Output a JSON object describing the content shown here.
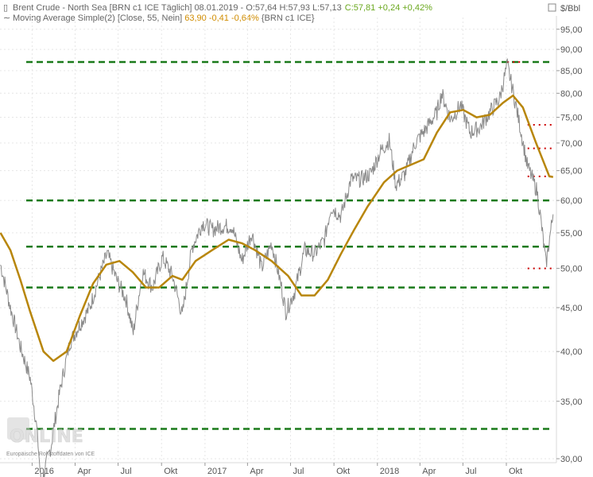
{
  "header": {
    "line1_prefix": "Brent Crude - North Sea [BRN c1 ICE  Täglich] 08.01.2019 - ",
    "line1_ohl": "O:57,64 H:57,93 L:57,13",
    "line1_close": "C:57,81 +0,24 +0,42%",
    "line2_prefix": "Moving Average Simple(2) [Close, 55, Nein] ",
    "line2_value": "63,90 -0,41 -0,64%",
    "line2_suffix": " {BRN c1 ICE}",
    "close_color": "#6aa81e",
    "neg_color": "#cc0033",
    "value_color": "#d08c00"
  },
  "axis": {
    "unit": "$/Bbl",
    "source_note": "Europäische Rohstoffdaten von ICE"
  },
  "logo": {
    "text": "ONLINE"
  },
  "chart_data": {
    "type": "line",
    "title": "Brent Crude - North Sea [BRN c1 ICE  Täglich]",
    "ylabel": "$/Bbl",
    "yscale": "log",
    "ylim": [
      30,
      97
    ],
    "y_ticks": [
      "30,00",
      "35,00",
      "40,00",
      "45,00",
      "50,00",
      "55,00",
      "60,00",
      "65,00",
      "70,00",
      "75,00",
      "80,00",
      "85,00",
      "90,00",
      "95,00"
    ],
    "y_tick_values": [
      30,
      35,
      40,
      45,
      50,
      55,
      60,
      65,
      70,
      75,
      80,
      85,
      90,
      95
    ],
    "x_ticks": [
      {
        "label": "2016",
        "date": "2016-01-01"
      },
      {
        "label": "Apr",
        "date": "2016-04-01"
      },
      {
        "label": "Jul",
        "date": "2016-07-01"
      },
      {
        "label": "Okt",
        "date": "2016-10-01"
      },
      {
        "label": "2017",
        "date": "2017-01-01"
      },
      {
        "label": "Apr",
        "date": "2017-04-01"
      },
      {
        "label": "Jul",
        "date": "2017-07-01"
      },
      {
        "label": "Okt",
        "date": "2017-10-01"
      },
      {
        "label": "2018",
        "date": "2018-01-01"
      },
      {
        "label": "Apr",
        "date": "2018-04-01"
      },
      {
        "label": "Jul",
        "date": "2018-07-01"
      },
      {
        "label": "Okt",
        "date": "2018-10-01"
      }
    ],
    "x_range": [
      "2015-10-25",
      "2019-01-15"
    ],
    "grid": true,
    "series": [
      {
        "name": "Brent Crude - North Sea",
        "color": "#8a8a8a",
        "points": [
          [
            "2015-10-26",
            50.5
          ],
          [
            "2015-11-16",
            45.0
          ],
          [
            "2015-12-07",
            40.5
          ],
          [
            "2015-12-28",
            37.2
          ],
          [
            "2016-01-11",
            32.5
          ],
          [
            "2016-01-20",
            28.0
          ],
          [
            "2016-02-10",
            31.0
          ],
          [
            "2016-02-29",
            36.0
          ],
          [
            "2016-03-21",
            41.0
          ],
          [
            "2016-04-11",
            43.0
          ],
          [
            "2016-05-02",
            45.0
          ],
          [
            "2016-05-23",
            49.0
          ],
          [
            "2016-06-08",
            52.0
          ],
          [
            "2016-06-28",
            48.5
          ],
          [
            "2016-07-18",
            46.0
          ],
          [
            "2016-08-02",
            42.0
          ],
          [
            "2016-08-22",
            49.5
          ],
          [
            "2016-09-12",
            47.5
          ],
          [
            "2016-10-03",
            51.5
          ],
          [
            "2016-10-24",
            49.0
          ],
          [
            "2016-11-14",
            44.0
          ],
          [
            "2016-12-05",
            53.0
          ],
          [
            "2016-12-27",
            56.5
          ],
          [
            "2017-01-16",
            55.5
          ],
          [
            "2017-02-06",
            56.0
          ],
          [
            "2017-02-27",
            56.0
          ],
          [
            "2017-03-20",
            51.0
          ],
          [
            "2017-04-10",
            55.0
          ],
          [
            "2017-05-01",
            50.0
          ],
          [
            "2017-05-22",
            53.5
          ],
          [
            "2017-06-12",
            47.5
          ],
          [
            "2017-06-21",
            44.5
          ],
          [
            "2017-07-10",
            47.0
          ],
          [
            "2017-07-31",
            52.5
          ],
          [
            "2017-08-21",
            52.0
          ],
          [
            "2017-09-11",
            54.0
          ],
          [
            "2017-09-25",
            59.0
          ],
          [
            "2017-10-16",
            57.5
          ],
          [
            "2017-11-06",
            63.5
          ],
          [
            "2017-11-27",
            63.5
          ],
          [
            "2017-12-18",
            64.5
          ],
          [
            "2018-01-08",
            68.5
          ],
          [
            "2018-01-26",
            70.5
          ],
          [
            "2018-02-09",
            62.5
          ],
          [
            "2018-03-01",
            64.5
          ],
          [
            "2018-03-22",
            70.0
          ],
          [
            "2018-04-12",
            72.5
          ],
          [
            "2018-05-07",
            76.0
          ],
          [
            "2018-05-17",
            80.0
          ],
          [
            "2018-06-05",
            74.5
          ],
          [
            "2018-06-26",
            77.5
          ],
          [
            "2018-07-16",
            72.0
          ],
          [
            "2018-08-06",
            73.0
          ],
          [
            "2018-08-27",
            76.0
          ],
          [
            "2018-09-17",
            79.0
          ],
          [
            "2018-10-03",
            86.3
          ],
          [
            "2018-10-24",
            76.0
          ],
          [
            "2018-11-14",
            66.0
          ],
          [
            "2018-12-05",
            61.5
          ],
          [
            "2018-12-24",
            50.5
          ],
          [
            "2019-01-08",
            57.81
          ]
        ]
      },
      {
        "name": "Moving Average Simple(2)",
        "color": "#b8860b",
        "points": [
          [
            "2015-10-26",
            55.0
          ],
          [
            "2015-11-16",
            52.5
          ],
          [
            "2015-12-07",
            48.5
          ],
          [
            "2015-12-28",
            44.5
          ],
          [
            "2016-01-25",
            40.0
          ],
          [
            "2016-02-15",
            39.0
          ],
          [
            "2016-03-14",
            40.0
          ],
          [
            "2016-04-11",
            44.0
          ],
          [
            "2016-05-09",
            48.0
          ],
          [
            "2016-06-06",
            50.5
          ],
          [
            "2016-07-04",
            51.0
          ],
          [
            "2016-08-01",
            49.5
          ],
          [
            "2016-08-29",
            47.5
          ],
          [
            "2016-09-26",
            47.5
          ],
          [
            "2016-10-24",
            49.0
          ],
          [
            "2016-11-14",
            48.5
          ],
          [
            "2016-12-12",
            51.0
          ],
          [
            "2017-01-16",
            52.5
          ],
          [
            "2017-02-20",
            54.0
          ],
          [
            "2017-03-20",
            53.5
          ],
          [
            "2017-04-17",
            52.5
          ],
          [
            "2017-05-22",
            51.0
          ],
          [
            "2017-06-26",
            49.0
          ],
          [
            "2017-07-24",
            46.5
          ],
          [
            "2017-08-21",
            46.5
          ],
          [
            "2017-09-18",
            48.5
          ],
          [
            "2017-10-16",
            52.0
          ],
          [
            "2017-11-13",
            55.5
          ],
          [
            "2017-12-11",
            59.0
          ],
          [
            "2018-01-15",
            63.0
          ],
          [
            "2018-02-12",
            65.0
          ],
          [
            "2018-03-12",
            66.0
          ],
          [
            "2018-04-09",
            67.0
          ],
          [
            "2018-05-07",
            72.0
          ],
          [
            "2018-06-04",
            76.0
          ],
          [
            "2018-07-02",
            76.5
          ],
          [
            "2018-07-30",
            75.0
          ],
          [
            "2018-08-27",
            75.5
          ],
          [
            "2018-09-24",
            78.0
          ],
          [
            "2018-10-15",
            79.5
          ],
          [
            "2018-11-05",
            77.0
          ],
          [
            "2018-12-03",
            70.0
          ],
          [
            "2018-12-31",
            64.0
          ],
          [
            "2019-01-08",
            63.9
          ]
        ]
      }
    ],
    "horizontal_levels": [
      {
        "value": 87.0,
        "color": "#1a7a1a",
        "style": "dashed"
      },
      {
        "value": 60.0,
        "color": "#1a7a1a",
        "style": "dashed"
      },
      {
        "value": 53.0,
        "color": "#1a7a1a",
        "style": "dashed"
      },
      {
        "value": 47.5,
        "color": "#1a7a1a",
        "style": "dashed"
      },
      {
        "value": 32.5,
        "color": "#1a7a1a",
        "style": "dashed"
      }
    ],
    "red_dotted_levels": [
      {
        "value": 73.5,
        "from": "2018-11-15",
        "to": "2019-01-08",
        "color": "#cc0000"
      },
      {
        "value": 69.0,
        "from": "2018-11-15",
        "to": "2019-01-08",
        "color": "#cc0000"
      },
      {
        "value": 64.0,
        "from": "2018-11-15",
        "to": "2019-01-08",
        "color": "#cc0000"
      },
      {
        "value": 50.0,
        "from": "2018-11-15",
        "to": "2019-01-08",
        "color": "#cc0000"
      },
      {
        "value": 87.0,
        "from": "2018-10-03",
        "to": "2018-11-05",
        "color": "#cc0000"
      }
    ]
  }
}
